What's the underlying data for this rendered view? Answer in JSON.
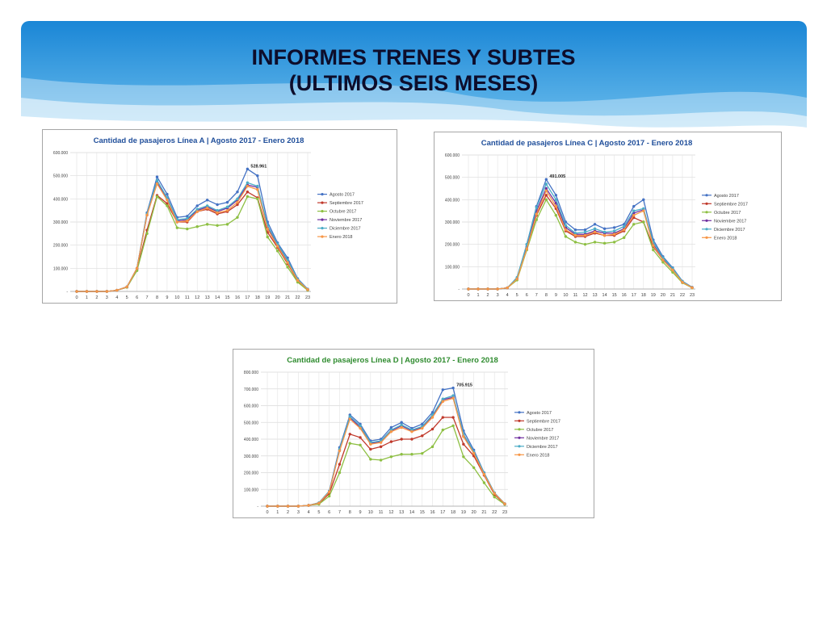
{
  "slide": {
    "title_line1": "INFORMES TRENES Y SUBTES",
    "title_line2": "(ULTIMOS SEIS MESES)",
    "banner_colors": [
      "#1f8fd9",
      "#5bb5ea",
      "#cde8f8"
    ]
  },
  "legend_series": [
    "Agosto 2017",
    "Septiembre 2017",
    "Octubre 2017",
    "Noviembre 2017",
    "Diciembre 2017",
    "Enero 2018"
  ],
  "series_colors": [
    "#4472c4",
    "#c0392b",
    "#8dbf42",
    "#7030a0",
    "#4bacc6",
    "#f79646"
  ],
  "chart_data": [
    {
      "type": "line",
      "title": "Cantidad de pasajeros Línea A | Agosto 2017 - Enero 2018",
      "ylim": [
        0,
        600000
      ],
      "yticks": [
        "-",
        "100.000",
        "200.000",
        "300.000",
        "400.000",
        "500.000",
        "600.000"
      ],
      "x": [
        0,
        1,
        2,
        3,
        4,
        5,
        6,
        7,
        8,
        9,
        10,
        11,
        12,
        13,
        14,
        15,
        16,
        17,
        18,
        19,
        20,
        21,
        22,
        23
      ],
      "annotation": {
        "label": "528.961",
        "x": 17,
        "y": 528961
      },
      "legend_position": "right",
      "grid": true,
      "series": [
        {
          "name": "Agosto 2017",
          "values": [
            0,
            0,
            0,
            0,
            5000,
            20000,
            100000,
            340000,
            495000,
            420000,
            320000,
            325000,
            370000,
            395000,
            375000,
            385000,
            430000,
            528961,
            500000,
            300000,
            210000,
            145000,
            55000,
            10000
          ]
        },
        {
          "name": "Septiembre 2017",
          "values": [
            0,
            0,
            0,
            0,
            5000,
            18000,
            95000,
            265000,
            415000,
            380000,
            300000,
            300000,
            345000,
            355000,
            335000,
            345000,
            375000,
            430000,
            405000,
            255000,
            190000,
            120000,
            45000,
            8000
          ]
        },
        {
          "name": "Octubre 2017",
          "values": [
            0,
            0,
            0,
            0,
            5000,
            18000,
            90000,
            250000,
            410000,
            370000,
            275000,
            270000,
            280000,
            290000,
            285000,
            290000,
            320000,
            410000,
            400000,
            235000,
            175000,
            105000,
            40000,
            5000
          ]
        },
        {
          "name": "Noviembre 2017",
          "values": [
            0,
            0,
            0,
            0,
            5000,
            20000,
            100000,
            330000,
            470000,
            400000,
            305000,
            310000,
            350000,
            365000,
            345000,
            360000,
            395000,
            460000,
            450000,
            275000,
            200000,
            130000,
            50000,
            8000
          ]
        },
        {
          "name": "Diciembre 2017",
          "values": [
            0,
            0,
            0,
            0,
            5000,
            20000,
            100000,
            335000,
            480000,
            405000,
            310000,
            315000,
            355000,
            370000,
            350000,
            365000,
            400000,
            470000,
            455000,
            285000,
            205000,
            135000,
            52000,
            9000
          ]
        },
        {
          "name": "Enero 2018",
          "values": [
            0,
            0,
            0,
            0,
            5000,
            20000,
            100000,
            330000,
            465000,
            395000,
            300000,
            305000,
            345000,
            360000,
            340000,
            350000,
            385000,
            455000,
            440000,
            270000,
            195000,
            125000,
            48000,
            8000
          ]
        }
      ]
    },
    {
      "type": "line",
      "title": "Cantidad de pasajeros Línea C | Agosto 2017 - Enero 2018",
      "ylim": [
        0,
        600000
      ],
      "yticks": [
        "-",
        "100.000",
        "200.000",
        "300.000",
        "400.000",
        "500.000",
        "600.000"
      ],
      "x": [
        0,
        1,
        2,
        3,
        4,
        5,
        6,
        7,
        8,
        9,
        10,
        11,
        12,
        13,
        14,
        15,
        16,
        17,
        18,
        19,
        20,
        21,
        22,
        23
      ],
      "annotation": {
        "label": "491.005",
        "x": 8,
        "y": 491005
      },
      "legend_position": "right",
      "grid": true,
      "series": [
        {
          "name": "Agosto 2017",
          "values": [
            0,
            0,
            0,
            0,
            5000,
            50000,
            200000,
            370000,
            491005,
            420000,
            300000,
            265000,
            265000,
            290000,
            270000,
            275000,
            290000,
            370000,
            400000,
            220000,
            145000,
            95000,
            35000,
            8000
          ]
        },
        {
          "name": "Septiembre 2017",
          "values": [
            0,
            0,
            0,
            0,
            5000,
            45000,
            180000,
            330000,
            420000,
            360000,
            260000,
            235000,
            235000,
            250000,
            240000,
            240000,
            260000,
            320000,
            300000,
            190000,
            130000,
            85000,
            30000,
            6000
          ]
        },
        {
          "name": "Octubre 2017",
          "values": [
            0,
            0,
            0,
            0,
            5000,
            40000,
            175000,
            310000,
            400000,
            330000,
            235000,
            210000,
            200000,
            210000,
            205000,
            210000,
            230000,
            290000,
            300000,
            175000,
            120000,
            75000,
            28000,
            5000
          ]
        },
        {
          "name": "Noviembre 2017",
          "values": [
            0,
            0,
            0,
            0,
            5000,
            48000,
            190000,
            350000,
            450000,
            385000,
            275000,
            245000,
            245000,
            260000,
            250000,
            250000,
            270000,
            340000,
            355000,
            200000,
            135000,
            88000,
            32000,
            7000
          ]
        },
        {
          "name": "Diciembre 2017",
          "values": [
            0,
            0,
            0,
            0,
            5000,
            52000,
            200000,
            365000,
            470000,
            400000,
            285000,
            250000,
            255000,
            270000,
            255000,
            260000,
            280000,
            350000,
            360000,
            210000,
            140000,
            92000,
            34000,
            7000
          ]
        },
        {
          "name": "Enero 2018",
          "values": [
            0,
            0,
            0,
            0,
            5000,
            45000,
            180000,
            335000,
            440000,
            370000,
            265000,
            240000,
            240000,
            255000,
            240000,
            245000,
            265000,
            330000,
            350000,
            195000,
            130000,
            85000,
            30000,
            6000
          ]
        }
      ]
    },
    {
      "type": "line",
      "title": "Cantidad de pasajeros Línea D | Agosto 2017 - Enero 2018",
      "ylim": [
        0,
        800000
      ],
      "yticks": [
        "-",
        "100.000",
        "200.000",
        "300.000",
        "400.000",
        "500.000",
        "600.000",
        "700.000",
        "800.000"
      ],
      "x": [
        0,
        1,
        2,
        3,
        4,
        5,
        6,
        7,
        8,
        9,
        10,
        11,
        12,
        13,
        14,
        15,
        16,
        17,
        18,
        19,
        20,
        21,
        22,
        23
      ],
      "annotation": {
        "label": "705.915",
        "x": 18,
        "y": 705915
      },
      "legend_position": "right",
      "grid": true,
      "series": [
        {
          "name": "Agosto 2017",
          "values": [
            0,
            0,
            0,
            0,
            5000,
            20000,
            90000,
            350000,
            545000,
            490000,
            390000,
            400000,
            470000,
            500000,
            465000,
            490000,
            560000,
            695000,
            705915,
            450000,
            335000,
            200000,
            80000,
            15000
          ]
        },
        {
          "name": "Septiembre 2017",
          "values": [
            0,
            0,
            0,
            0,
            5000,
            15000,
            75000,
            250000,
            430000,
            410000,
            340000,
            355000,
            385000,
            400000,
            400000,
            420000,
            460000,
            530000,
            530000,
            370000,
            300000,
            185000,
            70000,
            12000
          ]
        },
        {
          "name": "Octubre 2017",
          "values": [
            0,
            0,
            0,
            0,
            5000,
            12000,
            60000,
            200000,
            375000,
            365000,
            280000,
            275000,
            295000,
            310000,
            310000,
            315000,
            355000,
            455000,
            480000,
            295000,
            230000,
            140000,
            55000,
            10000
          ]
        },
        {
          "name": "Noviembre 2017",
          "values": [
            0,
            0,
            0,
            0,
            5000,
            18000,
            85000,
            335000,
            530000,
            470000,
            375000,
            385000,
            450000,
            480000,
            450000,
            470000,
            540000,
            635000,
            650000,
            420000,
            320000,
            195000,
            78000,
            14000
          ]
        },
        {
          "name": "Diciembre 2017",
          "values": [
            0,
            0,
            0,
            0,
            5000,
            20000,
            88000,
            340000,
            535000,
            480000,
            380000,
            390000,
            455000,
            485000,
            455000,
            475000,
            545000,
            640000,
            660000,
            430000,
            325000,
            198000,
            79000,
            15000
          ]
        },
        {
          "name": "Enero 2018",
          "values": [
            0,
            0,
            0,
            0,
            5000,
            18000,
            85000,
            330000,
            520000,
            465000,
            370000,
            380000,
            445000,
            470000,
            445000,
            465000,
            530000,
            625000,
            645000,
            415000,
            315000,
            190000,
            76000,
            14000
          ]
        }
      ]
    }
  ]
}
